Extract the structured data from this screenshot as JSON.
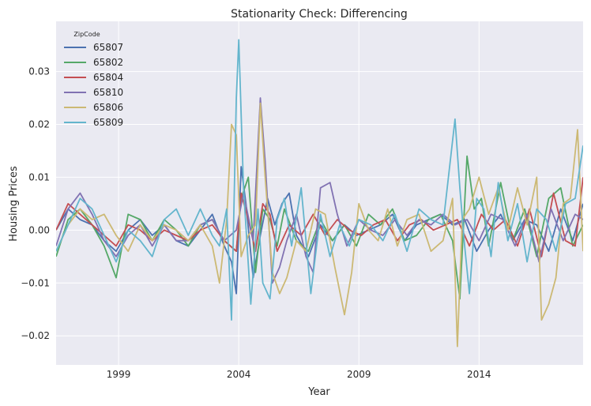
{
  "chart_data": {
    "type": "line",
    "title": "Stationarity Check: Differencing",
    "xlabel": "Year",
    "ylabel": "Housing Prices",
    "xlim": [
      1996.4,
      2018.33
    ],
    "ylim": [
      -0.0255,
      0.0395
    ],
    "x_ticks": [
      1999,
      2004,
      2009,
      2014
    ],
    "x_tick_labels": [
      "1999",
      "2004",
      "2009",
      "2014"
    ],
    "y_ticks": [
      -0.02,
      -0.01,
      0.0,
      0.01,
      0.02,
      0.03
    ],
    "y_tick_labels": [
      "−0.02",
      "−0.01",
      "0.00",
      "0.01",
      "0.02",
      "0.03"
    ],
    "grid": true,
    "legend": {
      "title": "ZipCode",
      "placement": "top-left"
    },
    "series": [
      {
        "name": "65807",
        "color": "#4c72b0",
        "x": [
          1996.4,
          1996.9,
          1997.4,
          1997.9,
          1998.4,
          1998.9,
          1999.4,
          1999.9,
          2000.4,
          2000.9,
          2001.4,
          2001.9,
          2002.4,
          2002.9,
          2003.4,
          2003.7,
          2003.9,
          2004.1,
          2004.3,
          2004.6,
          2004.9,
          2005.2,
          2005.5,
          2005.8,
          2006.1,
          2006.4,
          2006.9,
          2007.4,
          2007.9,
          2008.4,
          2008.9,
          2009.4,
          2009.9,
          2010.4,
          2010.9,
          2011.4,
          2011.9,
          2012.4,
          2012.9,
          2013.4,
          2013.9,
          2014.4,
          2014.9,
          2015.4,
          2015.9,
          2016.4,
          2016.9,
          2017.4,
          2017.9,
          2018.33
        ],
        "y": [
          0.0,
          0.004,
          0.002,
          0.001,
          -0.002,
          -0.004,
          0.0,
          0.002,
          -0.001,
          0.001,
          -0.002,
          -0.003,
          0.0,
          0.003,
          -0.003,
          -0.006,
          -0.012,
          0.012,
          0.005,
          -0.009,
          -0.001,
          0.006,
          0.001,
          0.005,
          0.007,
          -0.001,
          -0.005,
          0.001,
          -0.002,
          0.001,
          -0.001,
          0.0,
          0.001,
          0.003,
          -0.002,
          0.001,
          0.002,
          0.003,
          0.001,
          0.002,
          -0.004,
          0.0,
          0.003,
          -0.002,
          0.002,
          0.001,
          -0.004,
          0.004,
          -0.002,
          0.005
        ]
      },
      {
        "name": "65802",
        "color": "#55a868",
        "x": [
          1996.4,
          1996.9,
          1997.4,
          1997.9,
          1998.4,
          1998.9,
          1999.4,
          1999.9,
          2000.4,
          2000.9,
          2001.4,
          2001.9,
          2002.4,
          2002.9,
          2003.4,
          2003.9,
          2004.1,
          2004.4,
          2004.7,
          2005.0,
          2005.3,
          2005.6,
          2005.9,
          2006.4,
          2006.9,
          2007.4,
          2007.9,
          2008.4,
          2008.9,
          2009.4,
          2009.9,
          2010.4,
          2010.9,
          2011.4,
          2011.9,
          2012.4,
          2012.9,
          2013.2,
          2013.5,
          2013.8,
          2014.1,
          2014.4,
          2014.9,
          2015.4,
          2015.9,
          2016.4,
          2016.9,
          2017.4,
          2017.9,
          2018.33
        ],
        "y": [
          -0.005,
          0.002,
          0.004,
          0.001,
          -0.003,
          -0.009,
          0.003,
          0.002,
          -0.002,
          0.002,
          0.0,
          -0.003,
          0.001,
          0.002,
          -0.002,
          -0.004,
          0.006,
          0.01,
          -0.008,
          0.004,
          0.002,
          -0.003,
          0.004,
          -0.002,
          -0.004,
          0.002,
          -0.002,
          0.001,
          -0.003,
          0.003,
          0.001,
          0.004,
          -0.002,
          -0.001,
          0.002,
          0.003,
          -0.002,
          -0.013,
          0.014,
          0.004,
          0.006,
          -0.003,
          0.009,
          -0.002,
          0.004,
          -0.005,
          0.006,
          0.008,
          -0.003,
          0.001
        ]
      },
      {
        "name": "65804",
        "color": "#c44e52",
        "x": [
          1996.4,
          1996.9,
          1997.4,
          1997.9,
          1998.4,
          1998.9,
          1999.4,
          1999.9,
          2000.4,
          2000.9,
          2001.4,
          2001.9,
          2002.4,
          2002.9,
          2003.4,
          2003.9,
          2004.1,
          2004.4,
          2004.7,
          2005.0,
          2005.3,
          2005.6,
          2006.1,
          2006.6,
          2007.1,
          2007.6,
          2008.1,
          2008.6,
          2009.1,
          2009.6,
          2010.1,
          2010.6,
          2011.1,
          2011.6,
          2012.1,
          2012.6,
          2013.1,
          2013.6,
          2014.1,
          2014.6,
          2015.1,
          2015.6,
          2016.1,
          2016.6,
          2017.1,
          2017.6,
          2018.0,
          2018.33
        ],
        "y": [
          0.0,
          0.005,
          0.003,
          0.001,
          -0.001,
          -0.003,
          0.001,
          0.0,
          -0.002,
          0.0,
          -0.001,
          -0.002,
          0.0,
          0.001,
          -0.002,
          -0.004,
          0.007,
          0.002,
          -0.004,
          0.005,
          0.003,
          -0.004,
          0.001,
          -0.001,
          0.003,
          -0.001,
          0.002,
          0.0,
          -0.001,
          0.001,
          0.002,
          -0.002,
          0.001,
          0.002,
          0.0,
          0.001,
          0.002,
          -0.003,
          0.003,
          0.0,
          0.002,
          -0.003,
          0.004,
          -0.005,
          0.007,
          -0.002,
          -0.003,
          0.01
        ]
      },
      {
        "name": "65810",
        "color": "#8172b2",
        "x": [
          1996.4,
          1996.9,
          1997.4,
          1997.9,
          1998.4,
          1998.9,
          1999.4,
          1999.9,
          2000.4,
          2000.9,
          2001.4,
          2001.9,
          2002.4,
          2002.9,
          2003.4,
          2003.9,
          2004.2,
          2004.6,
          2004.9,
          2005.1,
          2005.4,
          2005.7,
          2006.0,
          2006.4,
          2006.8,
          2007.1,
          2007.4,
          2007.8,
          2008.1,
          2008.5,
          2009.0,
          2009.5,
          2010.0,
          2010.5,
          2011.0,
          2011.5,
          2012.0,
          2012.5,
          2013.0,
          2013.5,
          2014.0,
          2014.5,
          2015.0,
          2015.5,
          2016.0,
          2016.5,
          2017.0,
          2017.5,
          2018.0,
          2018.33
        ],
        "y": [
          -0.003,
          0.004,
          0.007,
          0.003,
          -0.002,
          -0.005,
          -0.001,
          0.001,
          -0.003,
          0.001,
          -0.002,
          -0.002,
          0.001,
          0.002,
          -0.002,
          0.0,
          0.007,
          -0.002,
          0.025,
          0.013,
          -0.01,
          -0.007,
          -0.002,
          0.003,
          -0.005,
          -0.008,
          0.008,
          0.009,
          0.003,
          -0.003,
          0.002,
          0.0,
          -0.001,
          0.002,
          -0.001,
          0.002,
          0.001,
          0.003,
          0.001,
          0.002,
          -0.002,
          0.003,
          0.002,
          -0.003,
          0.003,
          -0.006,
          0.004,
          -0.002,
          0.003,
          0.002
        ]
      },
      {
        "name": "65806",
        "color": "#ccb974",
        "x": [
          1996.4,
          1996.9,
          1997.4,
          1997.9,
          1998.4,
          1998.9,
          1999.4,
          1999.9,
          2000.4,
          2000.9,
          2001.4,
          2001.9,
          2002.4,
          2002.9,
          2003.2,
          2003.5,
          2003.7,
          2003.9,
          2004.1,
          2004.4,
          2004.7,
          2004.9,
          2005.1,
          2005.4,
          2005.7,
          2006.0,
          2006.4,
          2006.8,
          2007.2,
          2007.6,
          2008.0,
          2008.4,
          2008.7,
          2009.0,
          2009.4,
          2009.8,
          2010.2,
          2010.6,
          2011.0,
          2011.5,
          2012.0,
          2012.5,
          2012.9,
          2013.1,
          2013.3,
          2013.6,
          2014.0,
          2014.4,
          2014.8,
          2015.2,
          2015.6,
          2016.0,
          2016.4,
          2016.6,
          2016.9,
          2017.2,
          2017.5,
          2017.8,
          2018.1,
          2018.33
        ],
        "y": [
          -0.004,
          0.001,
          0.004,
          0.002,
          0.003,
          -0.001,
          -0.004,
          0.001,
          -0.002,
          0.001,
          0.0,
          -0.002,
          0.001,
          -0.003,
          -0.01,
          0.002,
          0.02,
          0.018,
          -0.005,
          -0.001,
          0.001,
          0.024,
          0.01,
          -0.008,
          -0.012,
          -0.009,
          -0.002,
          -0.004,
          0.004,
          0.003,
          -0.007,
          -0.016,
          -0.008,
          0.005,
          0.0,
          -0.002,
          0.004,
          -0.003,
          0.002,
          0.003,
          -0.004,
          -0.002,
          0.006,
          -0.022,
          0.002,
          0.004,
          0.01,
          0.003,
          0.008,
          0.0,
          0.008,
          0.001,
          0.01,
          -0.017,
          -0.014,
          -0.009,
          0.005,
          0.006,
          0.019,
          -0.004
        ]
      },
      {
        "name": "65809",
        "color": "#64b5cd",
        "x": [
          1996.4,
          1996.9,
          1997.4,
          1997.9,
          1998.4,
          1998.9,
          1999.4,
          1999.9,
          2000.4,
          2000.9,
          2001.4,
          2001.9,
          2002.4,
          2002.9,
          2003.2,
          2003.5,
          2003.7,
          2003.9,
          2004.0,
          2004.2,
          2004.5,
          2004.8,
          2005.0,
          2005.3,
          2005.6,
          2005.9,
          2006.2,
          2006.6,
          2007.0,
          2007.4,
          2007.8,
          2008.2,
          2008.6,
          2009.0,
          2009.5,
          2010.0,
          2010.5,
          2011.0,
          2011.5,
          2012.0,
          2012.5,
          2013.0,
          2013.2,
          2013.4,
          2013.6,
          2013.9,
          2014.2,
          2014.5,
          2014.8,
          2015.2,
          2015.6,
          2016.0,
          2016.4,
          2016.8,
          2017.2,
          2017.6,
          2018.0,
          2018.33
        ],
        "y": [
          -0.004,
          0.001,
          0.006,
          0.004,
          -0.001,
          -0.006,
          0.0,
          -0.002,
          -0.005,
          0.002,
          0.004,
          -0.001,
          0.004,
          -0.001,
          -0.003,
          0.004,
          -0.017,
          0.025,
          0.036,
          0.008,
          -0.014,
          0.004,
          -0.01,
          -0.013,
          0.002,
          0.006,
          -0.003,
          0.008,
          -0.012,
          0.003,
          -0.005,
          0.001,
          -0.003,
          0.002,
          0.001,
          -0.002,
          0.003,
          -0.004,
          0.004,
          0.002,
          0.001,
          0.021,
          0.008,
          -0.003,
          -0.012,
          0.006,
          0.004,
          -0.005,
          0.009,
          -0.002,
          0.005,
          -0.006,
          0.004,
          0.002,
          -0.004,
          0.005,
          0.006,
          0.016
        ]
      }
    ]
  }
}
